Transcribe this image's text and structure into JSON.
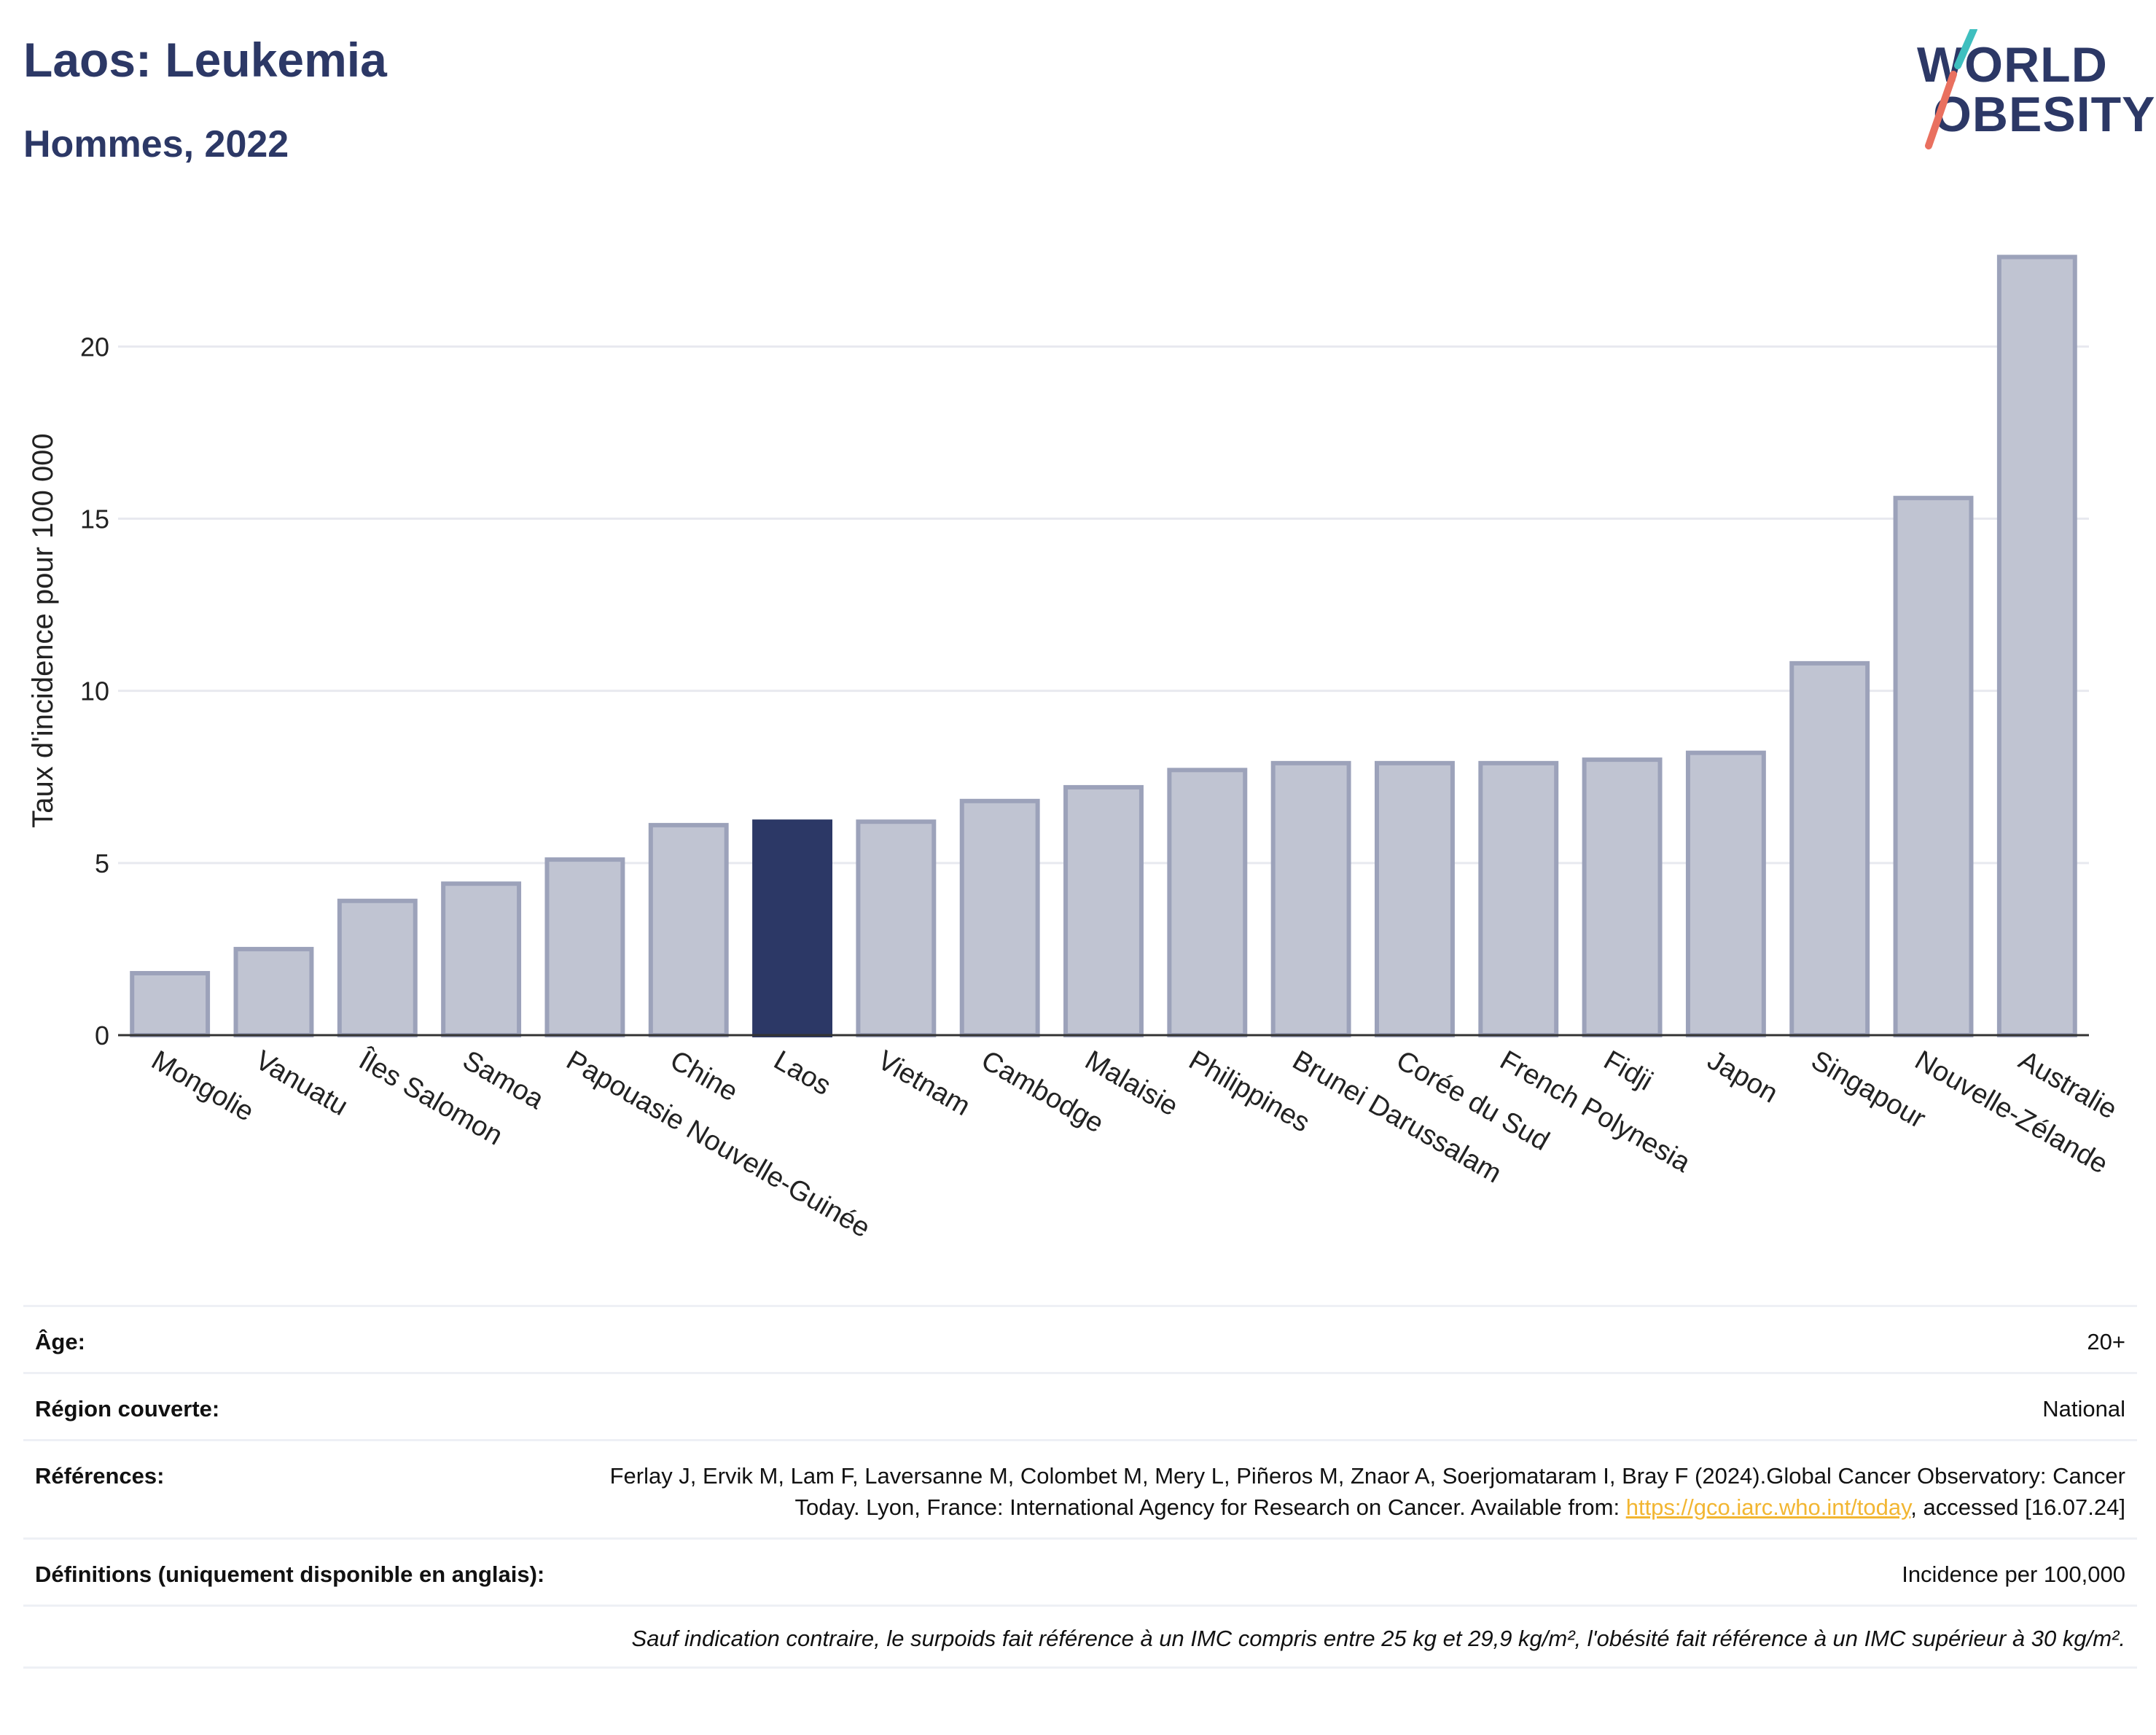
{
  "header": {
    "title": "Laos: Leukemia",
    "subtitle": "Hommes, 2022",
    "logo_line1": "WORLD",
    "logo_line2": "OBESITY"
  },
  "colors": {
    "highlight": "#2c3866",
    "bar": "#c0c4d2",
    "bar_stroke": "#9ca2ba",
    "grid": "#e8e9ef",
    "text": "#2c3866",
    "link": "#f2b632"
  },
  "chart_data": {
    "type": "bar",
    "title": "",
    "xlabel": "",
    "ylabel": "Taux d'incidence pour 100 000",
    "ylim": [
      0,
      23.5
    ],
    "yticks": [
      0,
      5,
      10,
      15,
      20
    ],
    "grid": true,
    "highlight": "Laos",
    "categories": [
      "Mongolie",
      "Vanuatu",
      "Îles Salomon",
      "Samoa",
      "Papouasie Nouvelle-Guinée",
      "Chine",
      "Laos",
      "Vietnam",
      "Cambodge",
      "Malaisie",
      "Philippines",
      "Brunei Darussalam",
      "Corée du Sud",
      "French Polynesia",
      "Fidji",
      "Japon",
      "Singapour",
      "Nouvelle-Zélande",
      "Australie"
    ],
    "values": [
      1.8,
      2.5,
      3.9,
      4.4,
      5.1,
      6.1,
      6.2,
      6.2,
      6.8,
      7.2,
      7.7,
      7.9,
      7.9,
      7.9,
      8.0,
      8.2,
      10.8,
      15.6,
      22.6
    ]
  },
  "info": {
    "age_label": "Âge:",
    "age_value": "20+",
    "region_label": "Région couverte:",
    "region_value": "National",
    "refs_label": "Références:",
    "refs_text_1": "Ferlay J, Ervik M, Lam F, Laversanne M, Colombet M, Mery L, Piñeros M, Znaor A, Soerjomataram I, Bray F (2024).Global Cancer Observatory: Cancer Today. Lyon, France: International Agency for Research on Cancer. Available from: ",
    "refs_link": "https://gco.iarc.who.int/today",
    "refs_text_2": ", accessed [16.07.24]",
    "defs_label": "Définitions (uniquement disponible en anglais):",
    "defs_value": "Incidence per 100,000",
    "note": "Sauf indication contraire, le surpoids fait référence à un IMC compris entre 25 kg et 29,9 kg/m², l'obésité fait référence à un IMC supérieur à 30 kg/m²."
  }
}
